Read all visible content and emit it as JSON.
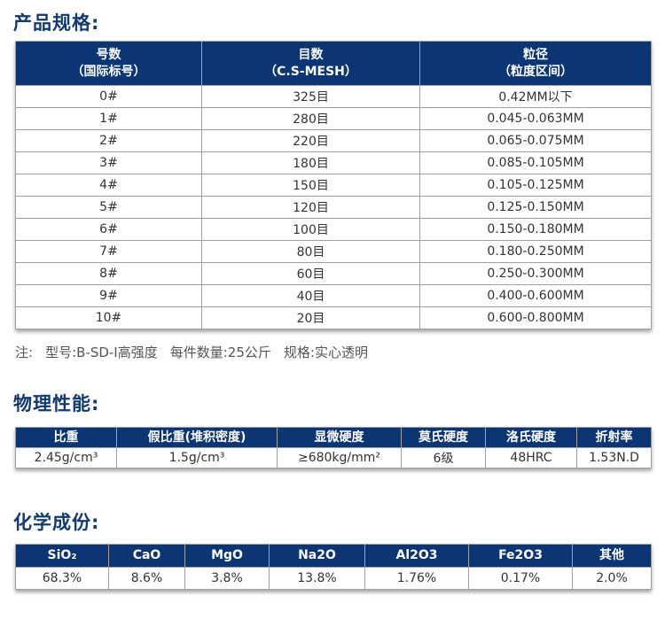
{
  "spec": {
    "title": "产品规格:",
    "headers": [
      [
        "号数",
        "（国际标号）"
      ],
      [
        "目数",
        "（C.S-MESH）"
      ],
      [
        "粒径",
        "（粒度区间）"
      ]
    ],
    "rows": [
      [
        "0#",
        "325目",
        "0.42MM以下"
      ],
      [
        "1#",
        "280目",
        "0.045-0.063MM"
      ],
      [
        "2#",
        "220目",
        "0.065-0.075MM"
      ],
      [
        "3#",
        "180目",
        "0.085-0.105MM"
      ],
      [
        "4#",
        "150目",
        "0.105-0.125MM"
      ],
      [
        "5#",
        "120目",
        "0.125-0.150MM"
      ],
      [
        "6#",
        "100目",
        "0.150-0.180MM"
      ],
      [
        "7#",
        "80目",
        "0.180-0.250MM"
      ],
      [
        "8#",
        "60目",
        "0.250-0.300MM"
      ],
      [
        "9#",
        "40目",
        "0.400-0.600MM"
      ],
      [
        "10#",
        "20目",
        "0.600-0.800MM"
      ]
    ],
    "note": [
      "注:",
      "型号:B-SD-I高强度",
      "每件数量:25公斤",
      "规格:实心透明"
    ]
  },
  "physical": {
    "title": "物理性能:",
    "headers": [
      "比重",
      "假比重(堆积密度)",
      "显微硬度",
      "莫氏硬度",
      "洛氏硬度",
      "折射率"
    ],
    "values": [
      "2.45g/cm³",
      "1.5g/cm³",
      "≥680kg/mm²",
      "6级",
      "48HRC",
      "1.53N.D"
    ]
  },
  "chemical": {
    "title": "化学成份:",
    "headers": [
      "SiO₂",
      "CaO",
      "MgO",
      "Na2O",
      "Al2O3",
      "Fe2O3",
      "其他"
    ],
    "values": [
      "68.3%",
      "8.6%",
      "3.8%",
      "13.8%",
      "1.76%",
      "0.17%",
      "2.0%"
    ]
  },
  "colors": {
    "header_bg": "#0b3673",
    "title": "#123a6e"
  }
}
